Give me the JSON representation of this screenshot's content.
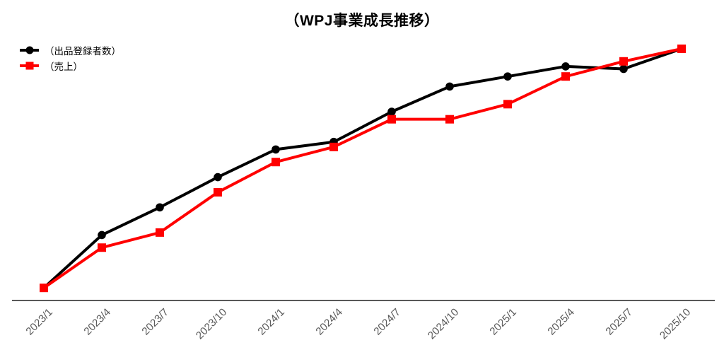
{
  "chart_data": {
    "type": "line",
    "title": "（WPJ事業成長推移）",
    "categories": [
      "2023/1",
      "2023/4",
      "2023/7",
      "2023/10",
      "2024/1",
      "2024/4",
      "2024/7",
      "2024/10",
      "2025/1",
      "2025/4",
      "2025/7",
      "2025/10"
    ],
    "series": [
      {
        "name": "（出品登録者数）",
        "color": "#000000",
        "marker": "circle",
        "values": [
          5,
          26,
          37,
          49,
          60,
          63,
          75,
          85,
          89,
          93,
          92,
          100
        ]
      },
      {
        "name": "（売上）",
        "color": "#ff0000",
        "marker": "square",
        "values": [
          5,
          21,
          27,
          43,
          55,
          61,
          72,
          72,
          78,
          89,
          95,
          100
        ]
      }
    ],
    "xlabel": "",
    "ylabel": "",
    "ylim": [
      0,
      105
    ],
    "y_axis_visible": false,
    "gridlines": false,
    "legend_position": "top-left",
    "x_axis_color": "#595959",
    "x_label_color": "#595959"
  }
}
